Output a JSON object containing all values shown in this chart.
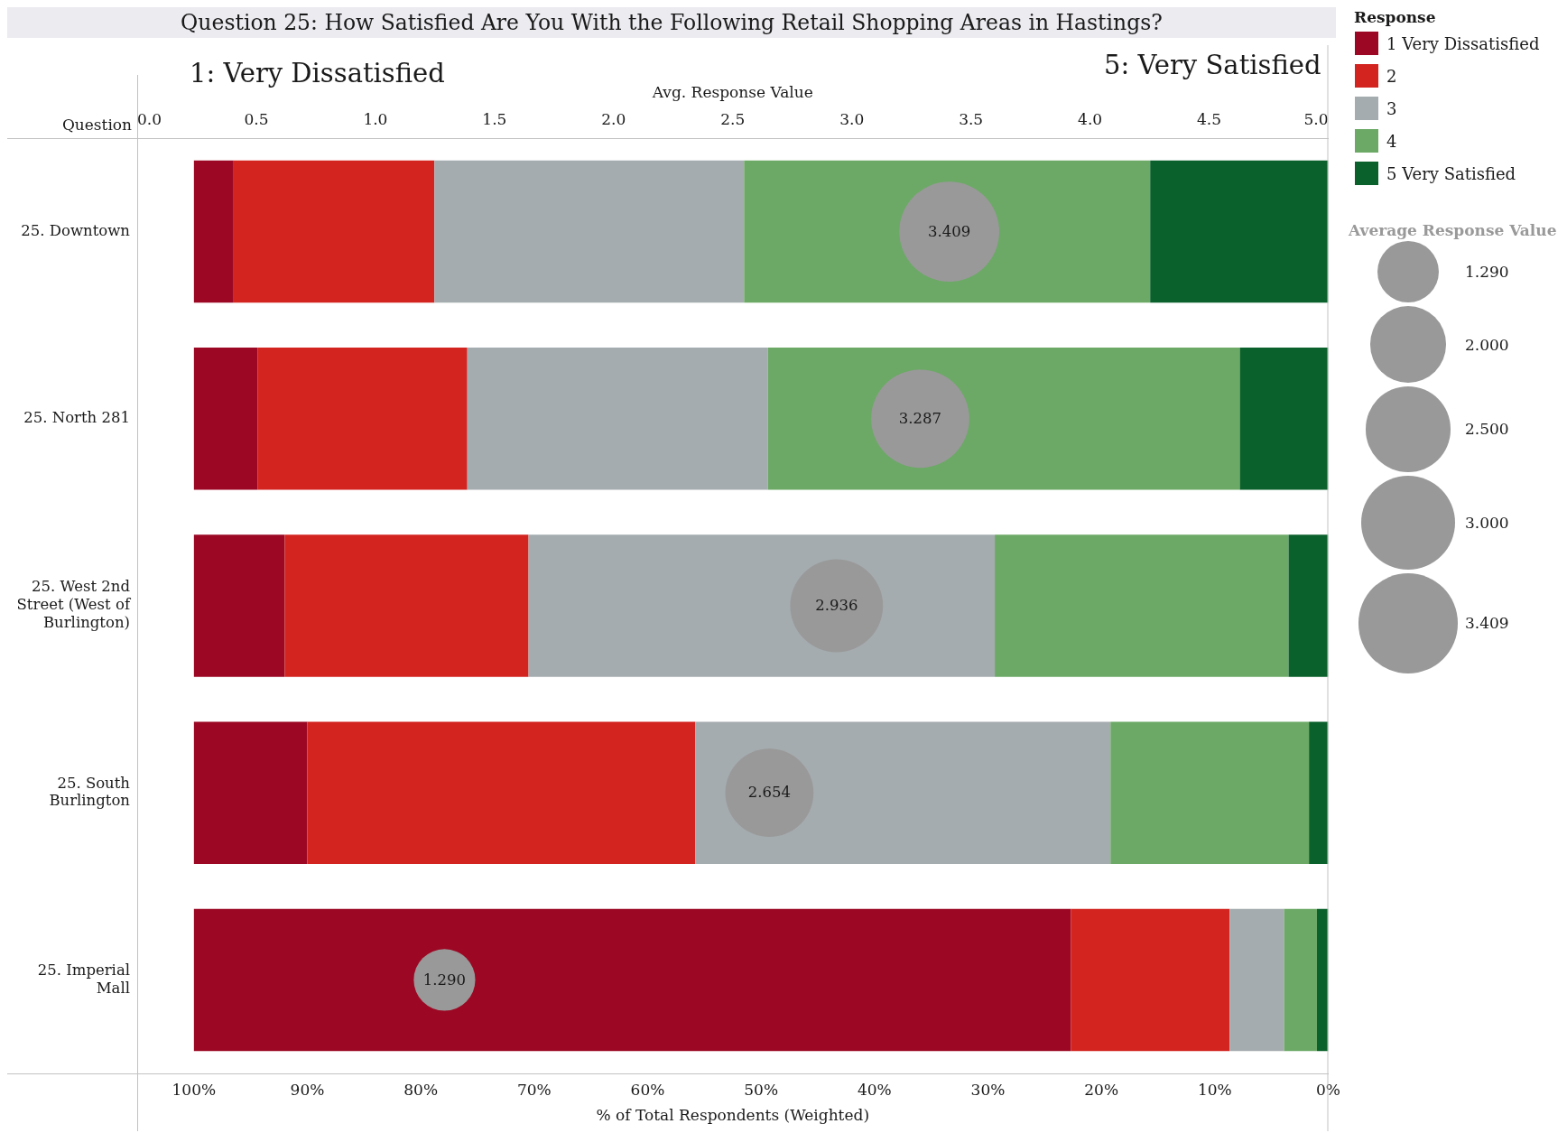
{
  "chart_data": {
    "type": "bar",
    "orientation": "horizontal",
    "stacked": true,
    "title": "Question 25: How Satisfied Are You With the Following Retail Shopping Areas in Hastings?",
    "xlabel": "% of Total Respondents (Weighted)",
    "x2label": "Avg. Response Value",
    "ylabel": "Question",
    "legend_title": "Response",
    "annotations": [
      "1: Very Dissatisfied",
      "5: Very Satisfied"
    ],
    "categories": [
      "25. Downtown",
      "25. North 281",
      "25. West 2nd Street (West of Burlington)",
      "25. South Burlington",
      "25. Imperial Mall"
    ],
    "series": [
      {
        "name": "5 Very Satisfied",
        "color": "#0b612b",
        "values": [
          15.7,
          7.8,
          3.5,
          1.7,
          1.0
        ]
      },
      {
        "name": "4",
        "color": "#6ca966",
        "values": [
          35.8,
          41.6,
          25.9,
          17.5,
          2.9
        ]
      },
      {
        "name": "3",
        "color": "#a5acaf",
        "values": [
          27.3,
          26.5,
          41.1,
          36.6,
          4.8
        ]
      },
      {
        "name": "2",
        "color": "#d32420",
        "values": [
          17.7,
          18.5,
          21.5,
          34.2,
          14.0
        ]
      },
      {
        "name": "1 Very Dissatisfied",
        "color": "#9c0824",
        "values": [
          3.5,
          5.6,
          8.0,
          10.0,
          77.3
        ]
      },
      {
        "name": "Average Response Value",
        "type": "bubble",
        "axis": "x2",
        "color": "#999999",
        "values": [
          3.409,
          3.287,
          2.936,
          2.654,
          1.29
        ],
        "sizes": [
          3.409,
          3.287,
          2.936,
          2.654,
          1.29
        ],
        "value_labels": [
          "3.409",
          "3.287",
          "2.936",
          "2.654",
          "1.290"
        ]
      }
    ],
    "size_legend": [
      {
        "value": 1.29,
        "label": "1.290"
      },
      {
        "value": 2,
        "label": "2.000"
      },
      {
        "value": 2.5,
        "label": "2.500"
      },
      {
        "value": 3,
        "label": "3.000"
      },
      {
        "value": 3.409,
        "label": "3.409"
      }
    ],
    "xlim": [
      105,
      0
    ],
    "xticks": [
      {
        "value": 100,
        "label": "100%"
      },
      {
        "value": 90,
        "label": "90%"
      },
      {
        "value": 80,
        "label": "80%"
      },
      {
        "value": 70,
        "label": "70%"
      },
      {
        "value": 60,
        "label": "60%"
      },
      {
        "value": 50,
        "label": "50%"
      },
      {
        "value": 40,
        "label": "40%"
      },
      {
        "value": 30,
        "label": "30%"
      },
      {
        "value": 20,
        "label": "20%"
      },
      {
        "value": 10,
        "label": "10%"
      },
      {
        "value": 0,
        "label": "0%"
      }
    ],
    "x2lim": [
      0,
      5
    ],
    "x2ticks": [
      {
        "value": 0,
        "label": "0.0"
      },
      {
        "value": 0.5,
        "label": "0.5"
      },
      {
        "value": 1,
        "label": "1.0"
      },
      {
        "value": 1.5,
        "label": "1.5"
      },
      {
        "value": 2,
        "label": "2.0"
      },
      {
        "value": 2.5,
        "label": "2.5"
      },
      {
        "value": 3,
        "label": "3.0"
      },
      {
        "value": 3.5,
        "label": "3.5"
      },
      {
        "value": 4,
        "label": "4.0"
      },
      {
        "value": 4.5,
        "label": "4.5"
      },
      {
        "value": 5,
        "label": "5.0"
      }
    ],
    "legend": "top right"
  }
}
